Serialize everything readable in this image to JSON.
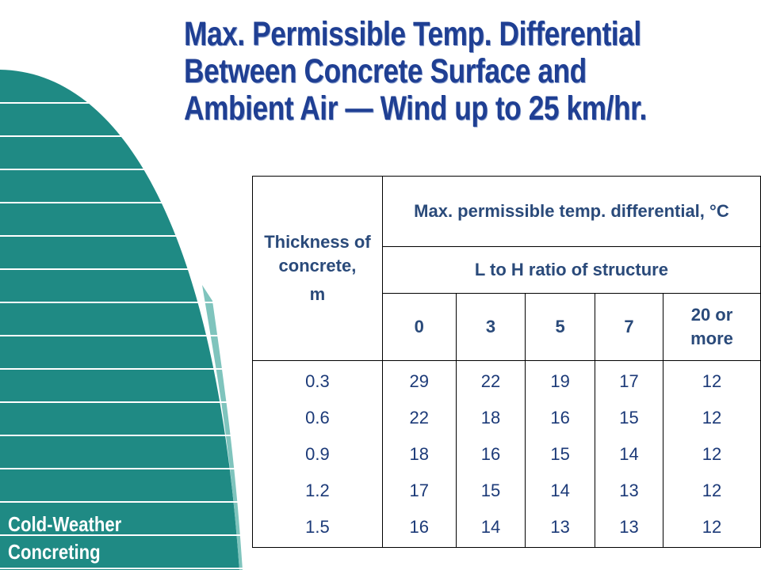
{
  "title": [
    "Max. Permissible Temp. Differential",
    "Between Concrete Surface and",
    "Ambient Air — Wind up to 25 km/hr."
  ],
  "footer": [
    "Cold-Weather",
    "Concreting"
  ],
  "table": {
    "header": {
      "thickness": "Thickness of concrete,",
      "unit": "m",
      "group": "Max. permissible temp. differential, °C",
      "subgroup": "L to H ratio of structure",
      "ratios": [
        "0",
        "3",
        "5",
        "7",
        "20 or more"
      ]
    },
    "rows": [
      [
        "0.3",
        "29",
        "22",
        "19",
        "17",
        "12"
      ],
      [
        "0.6",
        "22",
        "18",
        "16",
        "15",
        "12"
      ],
      [
        "0.9",
        "18",
        "16",
        "15",
        "14",
        "12"
      ],
      [
        "1.2",
        "17",
        "15",
        "14",
        "13",
        "12"
      ],
      [
        "1.5",
        "16",
        "14",
        "13",
        "13",
        "12"
      ]
    ]
  }
}
